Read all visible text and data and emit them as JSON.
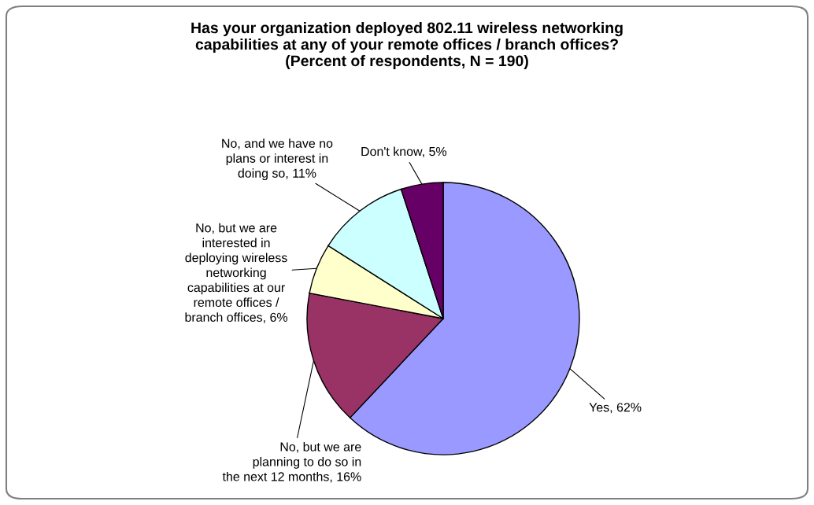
{
  "chart_data": {
    "type": "pie",
    "title": "Has your organization deployed 802.11 wireless networking\ncapabilities at any of your remote offices / branch offices?\n(Percent of respondents, N = 190)",
    "categories": [
      "Yes",
      "No, but we are\nplanning to do so in\nthe next 12 months",
      "No, but we are\ninterested in\ndeploying wireless\nnetworking\ncapabilities at our\nremote offices /\nbranch offices",
      "No, and we have no\nplans or interest in\ndoing so",
      "Don't know"
    ],
    "values": [
      62,
      16,
      6,
      11,
      5
    ],
    "value_labels": [
      "62%",
      "16%",
      "6%",
      "11%",
      "5%"
    ],
    "colors": [
      "#9999ff",
      "#993366",
      "#ffffcc",
      "#ccffff",
      "#660066"
    ],
    "legend": false
  }
}
